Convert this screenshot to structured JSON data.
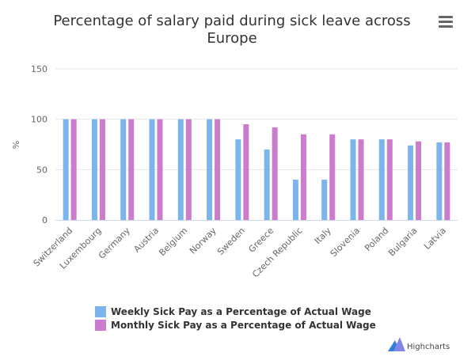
{
  "title_line1": "Percentage of salary paid during sick leave across",
  "title_line2": "Europe",
  "ylabel": "%",
  "menu_icon": "hamburger-menu-icon",
  "credits": "Highcharts",
  "credits_icon": "highcharts-logo-icon",
  "colors": {
    "weekly": "#7cb5ec",
    "monthly": "#cc7ccc",
    "grid": "#e6e6e6",
    "axis": "#ccd6eb"
  },
  "chart_data": {
    "type": "bar",
    "title": "Percentage of salary paid during sick leave across Europe",
    "ylabel": "%",
    "ylim": [
      0,
      150
    ],
    "yticks": [
      0,
      50,
      100,
      150
    ],
    "grid": true,
    "legend_position": "bottom",
    "categories": [
      "Switzerland",
      "Luxembourg",
      "Germany",
      "Austria",
      "Belgium",
      "Norway",
      "Sweden",
      "Greece",
      "Czech Republic",
      "Italy",
      "Slovenia",
      "Poland",
      "Bulgaria",
      "Latvia"
    ],
    "series": [
      {
        "name": "Weekly Sick Pay as a Percentage of Actual Wage",
        "values": [
          100,
          100,
          100,
          100,
          100,
          100,
          80,
          70,
          40,
          40,
          80,
          80,
          74,
          77
        ]
      },
      {
        "name": "Monthly Sick Pay as a Percentage of Actual Wage",
        "values": [
          100,
          100,
          100,
          100,
          100,
          100,
          95,
          92,
          85,
          85,
          80,
          80,
          78,
          77
        ]
      }
    ]
  }
}
